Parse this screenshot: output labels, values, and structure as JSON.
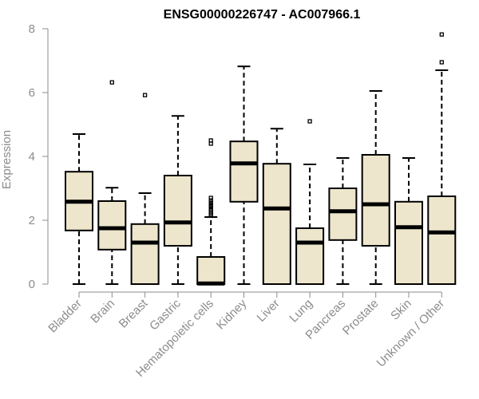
{
  "chart_data": {
    "type": "boxplot",
    "title": "ENSG00000226747 - AC007966.1",
    "ylabel": "Expression",
    "xlabel": "",
    "ylim": [
      0,
      8
    ],
    "yticks": [
      0,
      2,
      4,
      6,
      8
    ],
    "grid": false,
    "legend": "none",
    "box_fill": "#ede6cc",
    "box_stroke": "#000000",
    "axis_color": "#8c8c8c",
    "categories": [
      "Bladder",
      "Brain",
      "Breast",
      "Gastric",
      "Hematopoietic cells",
      "Kidney",
      "Liver",
      "Lung",
      "Pancreas",
      "Prostate",
      "Skin",
      "Unknown / Other"
    ],
    "boxes": [
      {
        "category": "Bladder",
        "whisker_low": 0,
        "q1": 1.68,
        "median": 2.58,
        "q3": 3.52,
        "whisker_high": 4.7,
        "outliers": []
      },
      {
        "category": "Brain",
        "whisker_low": 0,
        "q1": 1.08,
        "median": 1.75,
        "q3": 2.6,
        "whisker_high": 3.02,
        "outliers": [
          6.32
        ]
      },
      {
        "category": "Breast",
        "whisker_low": 0,
        "q1": 0,
        "median": 1.3,
        "q3": 1.88,
        "whisker_high": 2.85,
        "outliers": [
          5.92
        ]
      },
      {
        "category": "Gastric",
        "whisker_low": 0,
        "q1": 1.2,
        "median": 1.93,
        "q3": 3.4,
        "whisker_high": 5.27,
        "outliers": []
      },
      {
        "category": "Hematopoietic cells",
        "whisker_low": 0,
        "q1": 0,
        "median": 0.02,
        "q3": 0.85,
        "whisker_high": 2.1,
        "outliers": [
          2.15,
          2.2,
          2.25,
          2.3,
          2.35,
          2.42,
          2.48,
          2.55,
          2.62,
          2.7,
          4.4,
          4.5
        ]
      },
      {
        "category": "Kidney",
        "whisker_low": 0,
        "q1": 2.58,
        "median": 3.78,
        "q3": 4.47,
        "whisker_high": 6.82,
        "outliers": []
      },
      {
        "category": "Liver",
        "whisker_low": 0,
        "q1": 0,
        "median": 2.37,
        "q3": 3.77,
        "whisker_high": 4.87,
        "outliers": []
      },
      {
        "category": "Lung",
        "whisker_low": 0,
        "q1": 0,
        "median": 1.3,
        "q3": 1.75,
        "whisker_high": 3.75,
        "outliers": [
          5.1
        ]
      },
      {
        "category": "Pancreas",
        "whisker_low": 0,
        "q1": 1.38,
        "median": 2.28,
        "q3": 3.0,
        "whisker_high": 3.95,
        "outliers": []
      },
      {
        "category": "Prostate",
        "whisker_low": 0,
        "q1": 1.2,
        "median": 2.5,
        "q3": 4.05,
        "whisker_high": 6.05,
        "outliers": []
      },
      {
        "category": "Skin",
        "whisker_low": 0,
        "q1": 0,
        "median": 1.78,
        "q3": 2.58,
        "whisker_high": 3.95,
        "outliers": []
      },
      {
        "category": "Unknown / Other",
        "whisker_low": 0,
        "q1": 0,
        "median": 1.62,
        "q3": 2.75,
        "whisker_high": 6.7,
        "outliers": [
          6.95,
          7.82
        ]
      }
    ]
  }
}
